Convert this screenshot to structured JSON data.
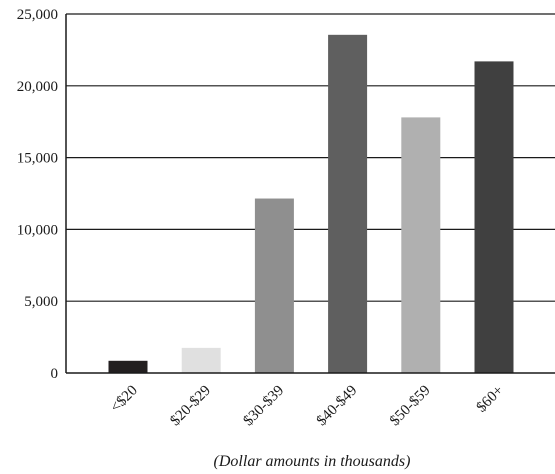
{
  "chart_data": {
    "type": "bar",
    "categories": [
      "<$20",
      "$20-$29",
      "$30-$39",
      "$40-$49",
      "$50-$59",
      "$60+"
    ],
    "values": [
      850,
      1750,
      12150,
      23550,
      17800,
      21700
    ],
    "colors": [
      "#231f20",
      "#e0e0e0",
      "#8f8f8f",
      "#5f5f5f",
      "#b0b0b0",
      "#404040"
    ],
    "xlabel": "(Dollar amounts in thousands)",
    "ylim": [
      0,
      25000
    ],
    "yticks": [
      0,
      5000,
      10000,
      15000,
      20000,
      25000
    ],
    "ytick_labels": [
      "0",
      "5,000",
      "10,000",
      "15,000",
      "20,000",
      "25,000"
    ],
    "grid": true
  }
}
